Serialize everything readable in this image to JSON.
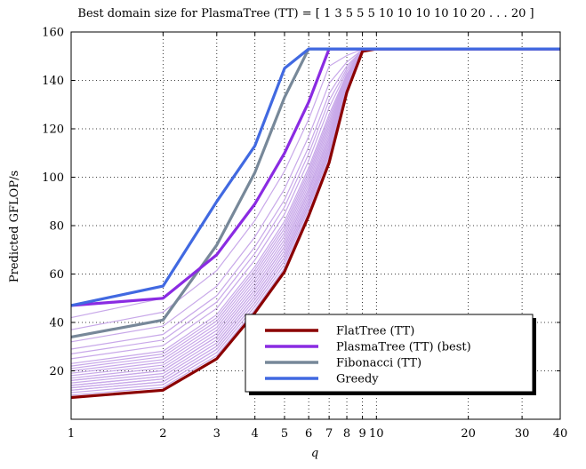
{
  "chart_data": {
    "type": "line",
    "title": "Best domain size for PlasmaTree (TT) = [ 1 3 5 5 5 10 10 10 10 10 20 . . . 20 ]",
    "xlabel": "q",
    "ylabel": "Predicted GFLOP/s",
    "xscale": "log",
    "xlim": [
      1,
      40
    ],
    "ylim": [
      0,
      160
    ],
    "xticks": [
      1,
      2,
      3,
      4,
      5,
      6,
      7,
      8,
      9,
      10,
      20,
      30,
      40
    ],
    "xtick_labels": [
      "1",
      "2",
      "3",
      "4",
      "5",
      "6",
      "7",
      "8",
      "9",
      "10",
      "20",
      "30",
      "40"
    ],
    "yticks": [
      20,
      40,
      60,
      80,
      100,
      120,
      140,
      160
    ],
    "ytick_labels": [
      "20",
      "40",
      "60",
      "80",
      "100",
      "120",
      "140",
      "160"
    ],
    "grid": true,
    "legend_position": "bottom-right",
    "x": [
      1,
      2,
      3,
      4,
      5,
      6,
      7,
      8,
      9,
      10,
      20,
      30,
      40
    ],
    "series": [
      {
        "name": "FlatTree (TT)",
        "color": "#8b0000",
        "values": [
          9,
          12,
          25,
          44,
          61,
          84,
          106,
          135,
          152,
          153,
          153,
          153,
          153
        ]
      },
      {
        "name": "PlasmaTree (TT) (best)",
        "color": "#8a2be2",
        "values": [
          47,
          50,
          68,
          89,
          110,
          131,
          153,
          153,
          153,
          153,
          153,
          153,
          153
        ]
      },
      {
        "name": "Fibonacci (TT)",
        "color": "#778899",
        "values": [
          34,
          41,
          72,
          102,
          133,
          153,
          153,
          153,
          153,
          153,
          153,
          153,
          153
        ]
      },
      {
        "name": "Greedy",
        "color": "#4169e1",
        "values": [
          47,
          55,
          90,
          113,
          145,
          153,
          153,
          153,
          153,
          153,
          153,
          153,
          153
        ]
      }
    ],
    "background_series": {
      "color": "#c8a8e9",
      "count": 24,
      "start_values": [
        42,
        37,
        32,
        29,
        27,
        25,
        23,
        22,
        21,
        20,
        19,
        18,
        17,
        16,
        16,
        15,
        14,
        14,
        13,
        13,
        12,
        12,
        11,
        10
      ]
    }
  }
}
